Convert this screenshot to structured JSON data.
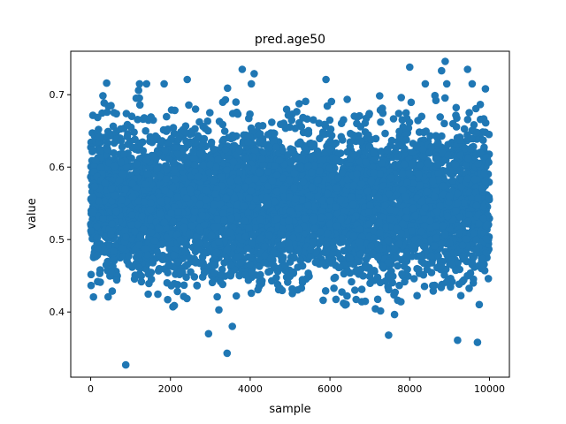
{
  "chart_data": {
    "type": "scatter",
    "title": "pred.age50",
    "xlabel": "sample",
    "ylabel": "value",
    "xlim": [
      -500,
      10500
    ],
    "ylim": [
      0.31,
      0.76
    ],
    "xticks": [
      0,
      2000,
      4000,
      6000,
      8000,
      10000
    ],
    "yticks": [
      0.4,
      0.5,
      0.6,
      0.7
    ],
    "xtick_labels": [
      "0",
      "2000",
      "4000",
      "6000",
      "8000",
      "10000"
    ],
    "ytick_labels": [
      "0.4",
      "0.5",
      "0.6",
      "0.7"
    ],
    "grid": false,
    "legend": "none",
    "n_samples": 10000,
    "x_range": [
      0,
      9999
    ],
    "y_distribution": {
      "mean": 0.55,
      "std": 0.05,
      "min": 0.327,
      "max": 0.746
    },
    "marker_color": "#1f77b4",
    "notable_points": [
      {
        "x": 880,
        "y": 0.327
      },
      {
        "x": 3420,
        "y": 0.343
      },
      {
        "x": 9700,
        "y": 0.358
      },
      {
        "x": 9200,
        "y": 0.361
      },
      {
        "x": 7470,
        "y": 0.368
      },
      {
        "x": 400,
        "y": 0.716
      },
      {
        "x": 1200,
        "y": 0.706
      },
      {
        "x": 1400,
        "y": 0.715
      },
      {
        "x": 2420,
        "y": 0.721
      },
      {
        "x": 3800,
        "y": 0.735
      },
      {
        "x": 4100,
        "y": 0.729
      },
      {
        "x": 5900,
        "y": 0.721
      },
      {
        "x": 8000,
        "y": 0.738
      },
      {
        "x": 8890,
        "y": 0.746
      },
      {
        "x": 8800,
        "y": 0.733
      },
      {
        "x": 9450,
        "y": 0.735
      },
      {
        "x": 9900,
        "y": 0.708
      }
    ]
  }
}
